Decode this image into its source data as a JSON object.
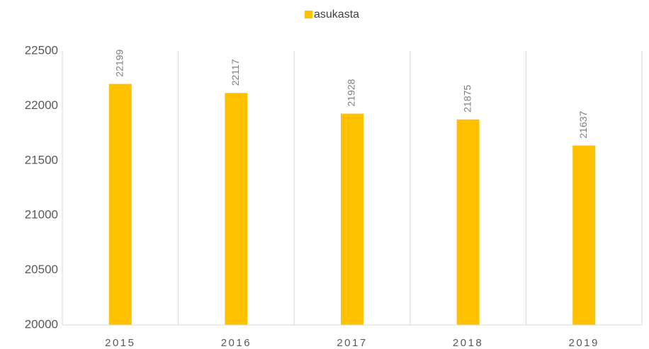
{
  "chart_data": {
    "type": "bar",
    "legend": "top",
    "series": [
      {
        "name": "asukasta",
        "color": "#FFC000",
        "values": [
          22199,
          22117,
          21928,
          21875,
          21637
        ]
      }
    ],
    "categories": [
      "2015",
      "2016",
      "2017",
      "2018",
      "2019"
    ],
    "ylim": [
      20000,
      22500
    ],
    "yticks": [
      20000,
      20500,
      21000,
      21500,
      22000,
      22500
    ],
    "grid": true
  }
}
